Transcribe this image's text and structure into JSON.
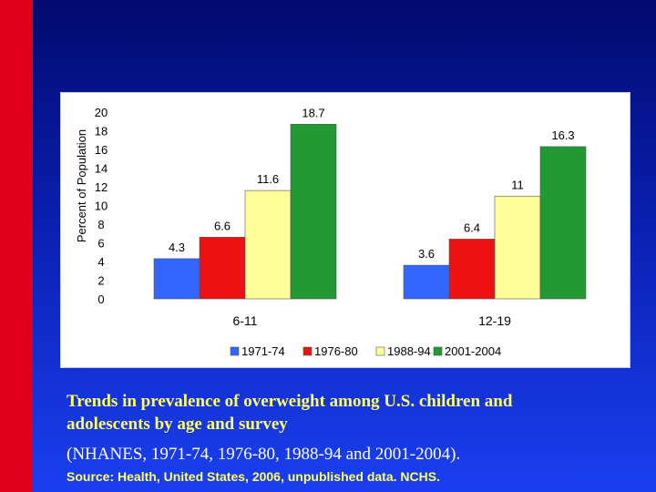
{
  "chart_data": {
    "type": "bar",
    "ylabel": "Percent of Population",
    "ylim": [
      0,
      20
    ],
    "yticks": [
      0,
      2,
      4,
      6,
      8,
      10,
      12,
      14,
      16,
      18,
      20
    ],
    "categories": [
      "6-11",
      "12-19"
    ],
    "series": [
      {
        "name": "1971-74",
        "color": "#3366ff",
        "values": [
          4.3,
          3.6
        ],
        "labels": [
          "4.3",
          "3.6"
        ]
      },
      {
        "name": "1976-80",
        "color": "#ee1111",
        "values": [
          6.6,
          6.4
        ],
        "labels": [
          "6.6",
          "6.4"
        ]
      },
      {
        "name": "1988-94",
        "color": "#ffff99",
        "values": [
          11.6,
          11
        ],
        "labels": [
          "11.6",
          "11"
        ]
      },
      {
        "name": "2001-2004",
        "color": "#229933",
        "values": [
          18.7,
          16.3
        ],
        "labels": [
          "18.7",
          "16.3"
        ]
      }
    ],
    "legend_position": "bottom"
  },
  "caption": {
    "line1": "Trends in prevalence of overweight among U.S. children and",
    "line2": "adolescents by age and survey",
    "line3": "(NHANES, 1971-74, 1976-80, 1988-94 and 2001-2004).",
    "source": "Source: Health, United States, 2006, unpublished data. NCHS."
  },
  "colors": {
    "background_top": "#020a6e",
    "background_bottom": "#1a3ff0",
    "stripe": "#e0001a",
    "caption_text": "#ffff66"
  }
}
